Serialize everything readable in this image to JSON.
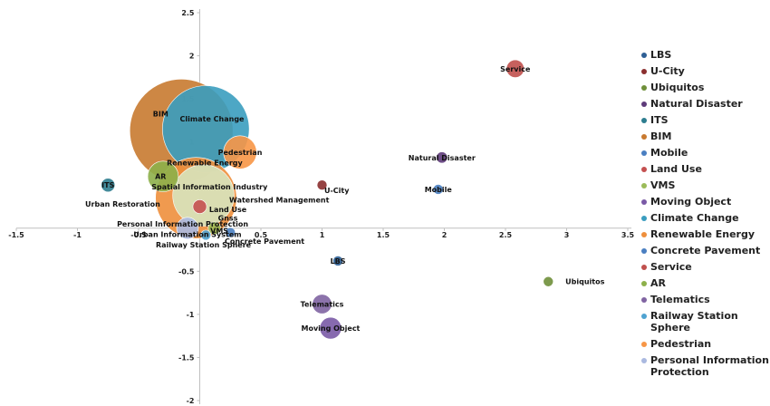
{
  "chart_data": {
    "type": "scatter",
    "xlim": [
      -1.5,
      3.5
    ],
    "ylim": [
      -2,
      2.5
    ],
    "x_ticks": [
      "-1.5",
      "-1",
      "-0.5",
      "0",
      "0.5",
      "1",
      "1.5",
      "2",
      "2.5",
      "3",
      "3.5"
    ],
    "y_ticks": [
      "2.5",
      "2",
      "1.5",
      "1",
      "0.5",
      "-0.5",
      "-1",
      "-1.5",
      "-2"
    ],
    "grid": false,
    "legend_position": "right",
    "series": [
      {
        "name": "LBS",
        "x": 1.13,
        "y": -0.38,
        "size": 0.03,
        "color": "#2e5f95"
      },
      {
        "name": "U-City",
        "x": 1.0,
        "y": 0.5,
        "size": 0.02,
        "color": "#8b2f2f"
      },
      {
        "name": "Ubiquitos",
        "x": 2.85,
        "y": -0.62,
        "size": 0.02,
        "color": "#6f8f3a"
      },
      {
        "name": "Natural Disaster",
        "x": 1.98,
        "y": 0.82,
        "size": 0.04,
        "color": "#5e3b7a"
      },
      {
        "name": "ITS",
        "x": -0.75,
        "y": 0.5,
        "size": 0.06,
        "color": "#2d7d8f"
      },
      {
        "name": "BIM",
        "x": -0.15,
        "y": 1.13,
        "size": 3.4,
        "color": "#c87a30"
      },
      {
        "name": "Mobile",
        "x": 1.95,
        "y": 0.45,
        "size": 0.01,
        "color": "#4a7fc1"
      },
      {
        "name": "Land Use",
        "x": 0.0,
        "y": 0.25,
        "size": 0.06,
        "color": "#c45050"
      },
      {
        "name": "VMS",
        "x": 0.12,
        "y": 0.0,
        "size": 0.05,
        "color": "#9bbb59"
      },
      {
        "name": "Moving Object",
        "x": 1.07,
        "y": -1.16,
        "size": 0.15,
        "color": "#7a5aa6"
      },
      {
        "name": "Climate Change",
        "x": 0.05,
        "y": 1.15,
        "size": 2.4,
        "color": "#3a9dbf"
      },
      {
        "name": "Renewable Energy",
        "x": -0.03,
        "y": 0.35,
        "size": 2.1,
        "color": "#ee8f3c"
      },
      {
        "name": "Concrete Pavement",
        "x": 0.25,
        "y": -0.05,
        "size": 0.01,
        "color": "#4a7fc1"
      },
      {
        "name": "Service",
        "x": 2.58,
        "y": 1.85,
        "size": 0.1,
        "color": "#c0504d"
      },
      {
        "name": "AR",
        "x": -0.3,
        "y": 0.6,
        "size": 0.3,
        "color": "#8db04a"
      },
      {
        "name": "Telematics",
        "x": 1.0,
        "y": -0.88,
        "size": 0.12,
        "color": "#8064a2"
      },
      {
        "name": "Railway Station Sphere",
        "x": 0.05,
        "y": -0.08,
        "size": 0.02,
        "color": "#4fa3d1"
      },
      {
        "name": "Pedestrian",
        "x": 0.33,
        "y": 0.88,
        "size": 0.35,
        "color": "#f79646"
      },
      {
        "name": "Personal Information Protection",
        "x": -0.1,
        "y": 0.0,
        "size": 0.15,
        "color": "#aab9e0"
      },
      {
        "name": "Spatial Information Industry",
        "x": 0.03,
        "y": 0.38,
        "size": 1.2,
        "color": "#d7e4bd"
      }
    ],
    "point_labels": [
      {
        "text": "Service",
        "x": 2.58,
        "y": 1.85
      },
      {
        "text": "BIM",
        "x": -0.32,
        "y": 1.33
      },
      {
        "text": "Climate Change",
        "x": 0.1,
        "y": 1.27
      },
      {
        "text": "Pedestrian",
        "x": 0.33,
        "y": 0.88
      },
      {
        "text": "Renewable Energy",
        "x": 0.04,
        "y": 0.76
      },
      {
        "text": "Natural Disaster",
        "x": 1.98,
        "y": 0.82
      },
      {
        "text": "AR",
        "x": -0.32,
        "y": 0.6
      },
      {
        "text": "Spatial Information Industry",
        "x": 0.08,
        "y": 0.48
      },
      {
        "text": "ITS",
        "x": -0.75,
        "y": 0.5
      },
      {
        "text": "U-City",
        "x": 1.12,
        "y": 0.44
      },
      {
        "text": "Mobile",
        "x": 1.95,
        "y": 0.45
      },
      {
        "text": "Watershed Management",
        "x": 0.65,
        "y": 0.33
      },
      {
        "text": "Urban Restoration",
        "x": -0.63,
        "y": 0.28
      },
      {
        "text": "Land Use",
        "x": 0.23,
        "y": 0.22
      },
      {
        "text": "Gnss",
        "x": 0.23,
        "y": 0.12
      },
      {
        "text": "Personal Information Protection",
        "x": -0.14,
        "y": 0.05
      },
      {
        "text": "VMS",
        "x": 0.16,
        "y": -0.03
      },
      {
        "text": "Urban Information System",
        "x": -0.1,
        "y": -0.07
      },
      {
        "text": "Concrete Pavement",
        "x": 0.53,
        "y": -0.15
      },
      {
        "text": "Railway Station Sphere",
        "x": 0.03,
        "y": -0.19
      },
      {
        "text": "LBS",
        "x": 1.13,
        "y": -0.38
      },
      {
        "text": "Ubiquitos",
        "x": 3.15,
        "y": -0.62
      },
      {
        "text": "Telematics",
        "x": 1.0,
        "y": -0.88
      },
      {
        "text": "Moving Object",
        "x": 1.07,
        "y": -1.16
      }
    ]
  },
  "legend": [
    {
      "label": "LBS",
      "color": "#2e5f95"
    },
    {
      "label": "U-City",
      "color": "#8b2f2f"
    },
    {
      "label": "Ubiquitos",
      "color": "#6f8f3a"
    },
    {
      "label": "Natural Disaster",
      "color": "#5e3b7a"
    },
    {
      "label": "ITS",
      "color": "#2d7d8f"
    },
    {
      "label": "BIM",
      "color": "#c87a30"
    },
    {
      "label": "Mobile",
      "color": "#4a7fc1"
    },
    {
      "label": "Land Use",
      "color": "#c45050"
    },
    {
      "label": "VMS",
      "color": "#9bbb59"
    },
    {
      "label": "Moving Object",
      "color": "#7a5aa6"
    },
    {
      "label": "Climate Change",
      "color": "#3a9dbf"
    },
    {
      "label": "Renewable Energy",
      "color": "#ee8f3c"
    },
    {
      "label": "Concrete Pavement",
      "color": "#4a7fc1"
    },
    {
      "label": "Service",
      "color": "#c0504d"
    },
    {
      "label": "AR",
      "color": "#8db04a"
    },
    {
      "label": "Telematics",
      "color": "#8064a2"
    },
    {
      "label": "Railway Station Sphere",
      "color": "#4fa3d1"
    },
    {
      "label": "Pedestrian",
      "color": "#f79646"
    },
    {
      "label": "Personal Information Protection",
      "color": "#aab9e0"
    }
  ]
}
